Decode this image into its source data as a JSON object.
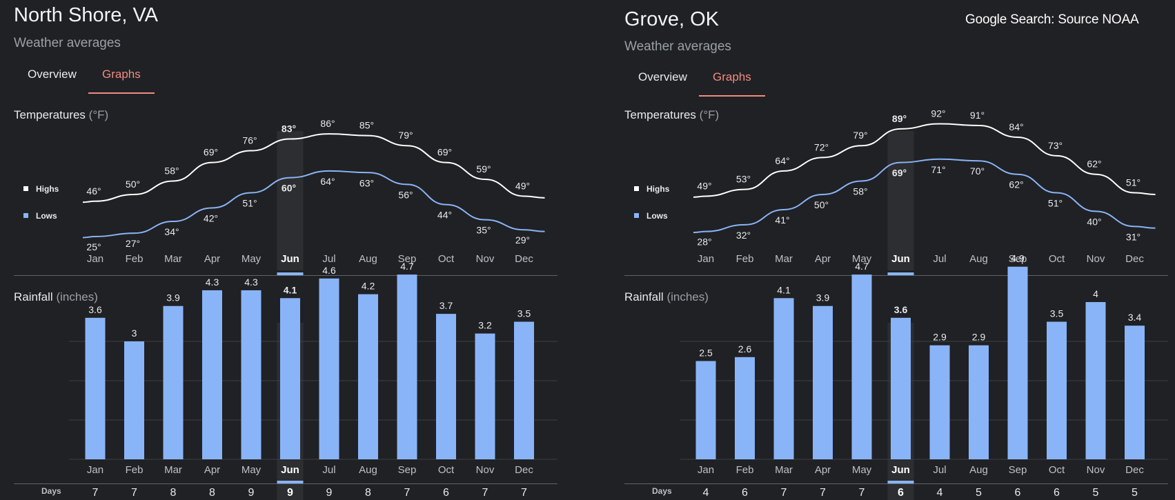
{
  "source": "Google Search: Source NOAA",
  "panels": [
    {
      "city": "North Shore, VA",
      "subtitle": "Weather averages",
      "tabs": [
        "Overview",
        "Graphs"
      ],
      "selected_tab": "Graphs",
      "temperature_title": "Temperatures",
      "temperature_unit": "(°F)",
      "rainfall_title": "Rainfall",
      "rainfall_unit": "(inches)",
      "legend": [
        "Highs",
        "Lows"
      ],
      "days_label": "Days",
      "selected_month": "Jun",
      "colors": {
        "highs": "#ffffff",
        "lows": "#8ab4f8",
        "bars": "#8ab4f8",
        "accent": "#f28b82"
      }
    },
    {
      "city": "Grove, OK",
      "subtitle": "Weather averages",
      "tabs": [
        "Overview",
        "Graphs"
      ],
      "selected_tab": "Graphs",
      "temperature_title": "Temperatures",
      "temperature_unit": "(°F)",
      "rainfall_title": "Rainfall",
      "rainfall_unit": "(inches)",
      "legend": [
        "Highs",
        "Lows"
      ],
      "days_label": "Days",
      "selected_month": "Jun",
      "colors": {
        "highs": "#ffffff",
        "lows": "#8ab4f8",
        "bars": "#8ab4f8",
        "accent": "#f28b82"
      }
    }
  ],
  "chart_data": [
    {
      "type": "line",
      "title": "Temperatures (°F)",
      "location": "North Shore, VA",
      "categories": [
        "Jan",
        "Feb",
        "Mar",
        "Apr",
        "May",
        "Jun",
        "Jul",
        "Aug",
        "Sep",
        "Oct",
        "Nov",
        "Dec"
      ],
      "series": [
        {
          "name": "Highs",
          "values": [
            46,
            50,
            58,
            69,
            76,
            83,
            86,
            85,
            79,
            69,
            59,
            49
          ],
          "labels": [
            "46°",
            "50°",
            "58°",
            "69°",
            "76°",
            "83°",
            "86°",
            "85°",
            "79°",
            "69°",
            "59°",
            "49°"
          ]
        },
        {
          "name": "Lows",
          "values": [
            25,
            27,
            34,
            42,
            51,
            60,
            64,
            63,
            56,
            44,
            35,
            29
          ],
          "labels": [
            "25°",
            "27°",
            "34°",
            "42°",
            "51°",
            "60°",
            "64°",
            "63°",
            "56°",
            "44°",
            "35°",
            "29°"
          ]
        }
      ],
      "legend": "left"
    },
    {
      "type": "bar",
      "title": "Rainfall (inches)",
      "location": "North Shore, VA",
      "categories": [
        "Jan",
        "Feb",
        "Mar",
        "Apr",
        "May",
        "Jun",
        "Jul",
        "Aug",
        "Sep",
        "Oct",
        "Nov",
        "Dec"
      ],
      "values": [
        3.6,
        3,
        3.9,
        4.3,
        4.3,
        4.1,
        4.6,
        4.2,
        4.7,
        3.7,
        3.2,
        3.5
      ],
      "labels": [
        "3.6",
        "3",
        "3.9",
        "4.3",
        "4.3",
        "4.1",
        "4.6",
        "4.2",
        "4.7",
        "3.7",
        "3.2",
        "3.5"
      ],
      "days": [
        "7",
        "7",
        "8",
        "8",
        "9",
        "9",
        "9",
        "8",
        "7",
        "6",
        "7",
        "7"
      ],
      "ylim": [
        0,
        10
      ],
      "grid": true
    },
    {
      "type": "line",
      "title": "Temperatures (°F)",
      "location": "Grove, OK",
      "categories": [
        "Jan",
        "Feb",
        "Mar",
        "Apr",
        "May",
        "Jun",
        "Jul",
        "Aug",
        "Sep",
        "Oct",
        "Nov",
        "Dec"
      ],
      "series": [
        {
          "name": "Highs",
          "values": [
            49,
            53,
            64,
            72,
            79,
            89,
            92,
            91,
            84,
            73,
            62,
            51
          ],
          "labels": [
            "49°",
            "53°",
            "64°",
            "72°",
            "79°",
            "89°",
            "92°",
            "91°",
            "84°",
            "73°",
            "62°",
            "51°"
          ]
        },
        {
          "name": "Lows",
          "values": [
            28,
            32,
            41,
            50,
            58,
            69,
            71,
            70,
            62,
            51,
            40,
            31
          ],
          "labels": [
            "28°",
            "32°",
            "41°",
            "50°",
            "58°",
            "69°",
            "71°",
            "70°",
            "62°",
            "51°",
            "40°",
            "31°"
          ]
        }
      ],
      "legend": "left"
    },
    {
      "type": "bar",
      "title": "Rainfall (inches)",
      "location": "Grove, OK",
      "categories": [
        "Jan",
        "Feb",
        "Mar",
        "Apr",
        "May",
        "Jun",
        "Jul",
        "Aug",
        "Sep",
        "Oct",
        "Nov",
        "Dec"
      ],
      "values": [
        2.5,
        2.6,
        4.1,
        3.9,
        4.7,
        3.6,
        2.9,
        2.9,
        4.9,
        3.5,
        4,
        3.4
      ],
      "labels": [
        "2.5",
        "2.6",
        "4.1",
        "3.9",
        "4.7",
        "3.6",
        "2.9",
        "2.9",
        "4.9",
        "3.5",
        "4",
        "3.4"
      ],
      "days": [
        "4",
        "6",
        "7",
        "7",
        "7",
        "6",
        "4",
        "5",
        "6",
        "6",
        "5",
        "5"
      ],
      "ylim": [
        0,
        10
      ],
      "grid": true
    }
  ]
}
